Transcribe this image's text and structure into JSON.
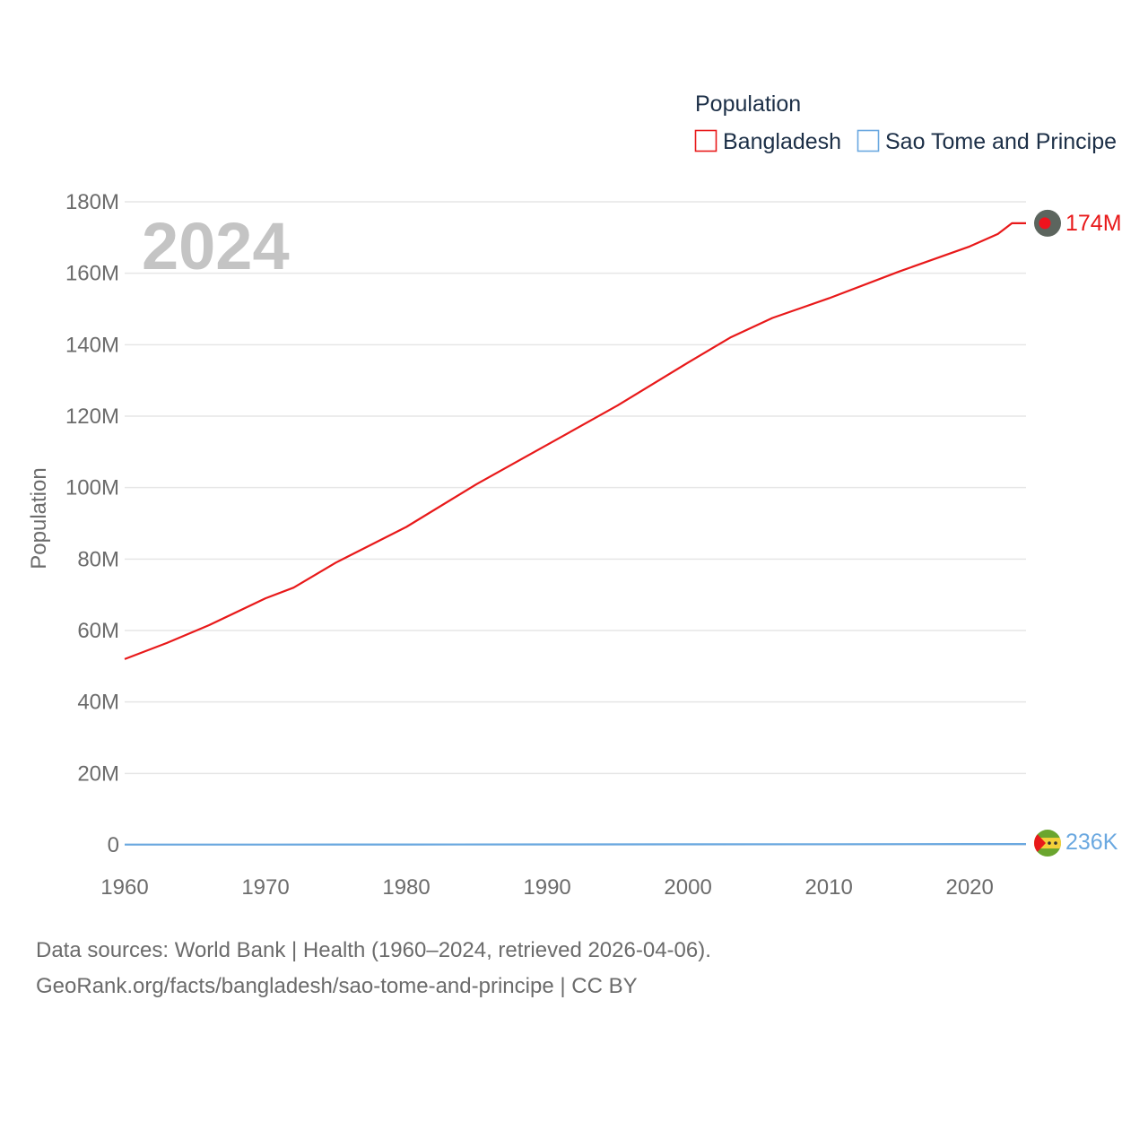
{
  "chart_data": {
    "type": "line",
    "ylabel": "Population",
    "xlabel": "",
    "watermark_year": "2024",
    "legend": {
      "title": "Population",
      "placement": "top-right"
    },
    "xlim": [
      1960,
      2024
    ],
    "ylim": [
      0,
      180000000
    ],
    "x_ticks": [
      1960,
      1970,
      1980,
      1990,
      2000,
      2010,
      2020
    ],
    "x_tick_labels": [
      "1960",
      "1970",
      "1980",
      "1990",
      "2000",
      "2010",
      "2020"
    ],
    "y_ticks": [
      0,
      20000000,
      40000000,
      60000000,
      80000000,
      100000000,
      120000000,
      140000000,
      160000000,
      180000000
    ],
    "y_tick_labels": [
      "0",
      "20M",
      "40M",
      "60M",
      "80M",
      "100M",
      "120M",
      "140M",
      "160M",
      "180M"
    ],
    "grid": true,
    "series": [
      {
        "name": "Bangladesh",
        "color": "#e8191a",
        "end_label": "174M",
        "marker": "flag-of-bangladesh",
        "x": [
          1960,
          1963,
          1966,
          1970,
          1972,
          1975,
          1980,
          1985,
          1990,
          1995,
          2000,
          2003,
          2006,
          2010,
          2015,
          2020,
          2022,
          2023,
          2024
        ],
        "values": [
          52000000,
          56500000,
          61500000,
          69000000,
          72000000,
          79000000,
          89000000,
          101000000,
          112000000,
          123000000,
          135000000,
          142000000,
          147500000,
          153000000,
          160500000,
          167500000,
          171000000,
          174000000,
          174000000
        ]
      },
      {
        "name": "Sao Tome and Principe",
        "color": "#6aa8e0",
        "end_label": "236K",
        "marker": "flag-of-sao-tome-and-principe",
        "x": [
          1960,
          1970,
          1980,
          1990,
          2000,
          2010,
          2020,
          2024
        ],
        "values": [
          64000,
          74000,
          94000,
          118000,
          142000,
          182000,
          218000,
          236000
        ]
      }
    ]
  },
  "footer": {
    "line1": "Data sources: World Bank | Health (1960–2024, retrieved 2026-04-06).",
    "line2": "GeoRank.org/facts/bangladesh/sao-tome-and-principe | CC BY"
  }
}
